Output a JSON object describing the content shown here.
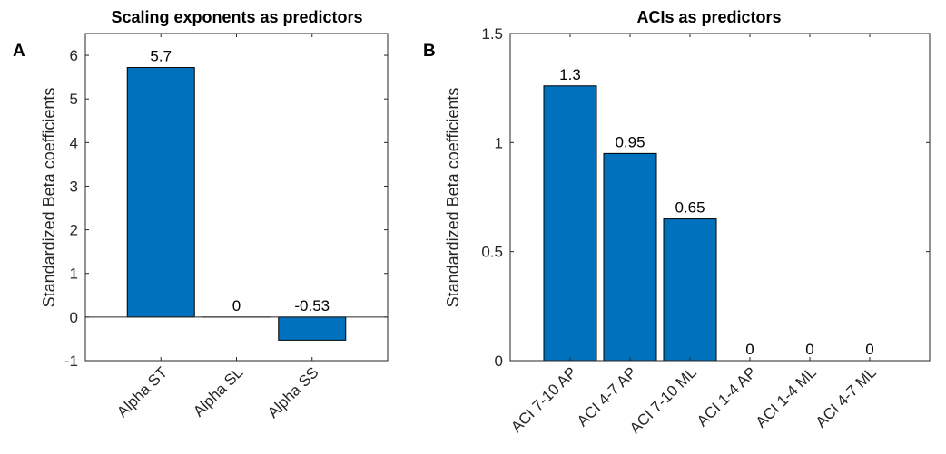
{
  "chart_data": [
    {
      "type": "bar",
      "panel": "A",
      "title": "Scaling exponents as predictors",
      "xlabel": "",
      "ylabel": "Standardized Beta coefficients",
      "categories": [
        "Alpha ST",
        "Alpha SL",
        "Alpha SS"
      ],
      "values": [
        5.72,
        0,
        -0.53
      ],
      "data_labels": [
        "5.7",
        "0",
        "-0.53"
      ],
      "ylim": [
        -1,
        6.5
      ],
      "yticks": [
        "-1",
        "0",
        "1",
        "2",
        "3",
        "4",
        "5",
        "6"
      ],
      "bar_color": "#0072BD",
      "grid": false
    },
    {
      "type": "bar",
      "panel": "B",
      "title": "ACIs as predictors",
      "xlabel": "",
      "ylabel": "Standardized Beta coefficients",
      "categories": [
        "ACI 7-10 AP",
        "ACI 4-7 AP",
        "ACI 7-10 ML",
        "ACI 1-4 AP",
        "ACI 1-4 ML",
        "ACI 4-7 ML"
      ],
      "values": [
        1.26,
        0.95,
        0.65,
        0,
        0,
        0
      ],
      "data_labels": [
        "1.3",
        "0.95",
        "0.65",
        "0",
        "0",
        "0"
      ],
      "ylim": [
        0,
        1.5
      ],
      "yticks": [
        "0",
        "0.5",
        "1",
        "1.5"
      ],
      "bar_color": "#0072BD",
      "grid": false
    }
  ]
}
